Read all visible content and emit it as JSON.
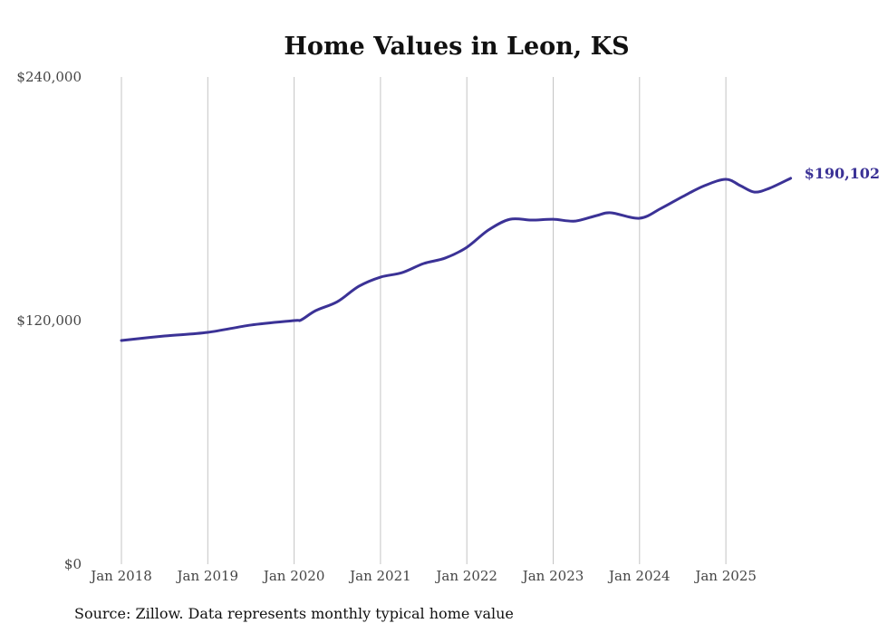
{
  "chart_data": {
    "type": "line",
    "title": "Home Values in Leon, KS",
    "xlabel": "",
    "ylabel": "",
    "ylim": [
      0,
      240000
    ],
    "yticks": [
      {
        "value": 0,
        "label": "$0"
      },
      {
        "value": 120000,
        "label": "$120,000"
      },
      {
        "value": 240000,
        "label": "$240,000"
      }
    ],
    "xticks": [
      {
        "value": 2018,
        "label": "Jan 2018"
      },
      {
        "value": 2019,
        "label": "Jan 2019"
      },
      {
        "value": 2020,
        "label": "Jan 2020"
      },
      {
        "value": 2021,
        "label": "Jan 2021"
      },
      {
        "value": 2022,
        "label": "Jan 2022"
      },
      {
        "value": 2023,
        "label": "Jan 2023"
      },
      {
        "value": 2024,
        "label": "Jan 2024"
      },
      {
        "value": 2025,
        "label": "Jan 2025"
      }
    ],
    "xlim": [
      2018,
      2025.75
    ],
    "grid": "vertical",
    "color": "#3b3296",
    "series": [
      {
        "name": "Typical home value",
        "x": [
          2018.0,
          2018.5,
          2019.0,
          2019.5,
          2020.0,
          2020.08,
          2020.25,
          2020.5,
          2020.75,
          2021.0,
          2021.25,
          2021.5,
          2021.75,
          2022.0,
          2022.25,
          2022.5,
          2022.75,
          2023.0,
          2023.25,
          2023.5,
          2023.67,
          2024.0,
          2024.25,
          2024.5,
          2024.75,
          2025.0,
          2025.17,
          2025.33,
          2025.5,
          2025.75
        ],
        "values": [
          110200,
          112400,
          114200,
          117800,
          120000,
          120300,
          124900,
          129300,
          136900,
          141400,
          143600,
          148100,
          150800,
          156100,
          164600,
          169900,
          169500,
          169900,
          169000,
          171700,
          173100,
          170400,
          175300,
          181100,
          186400,
          189600,
          186400,
          183300,
          185100,
          190102
        ]
      }
    ],
    "end_label": "$190,102"
  },
  "source": "Source: Zillow. Data represents monthly typical home value"
}
